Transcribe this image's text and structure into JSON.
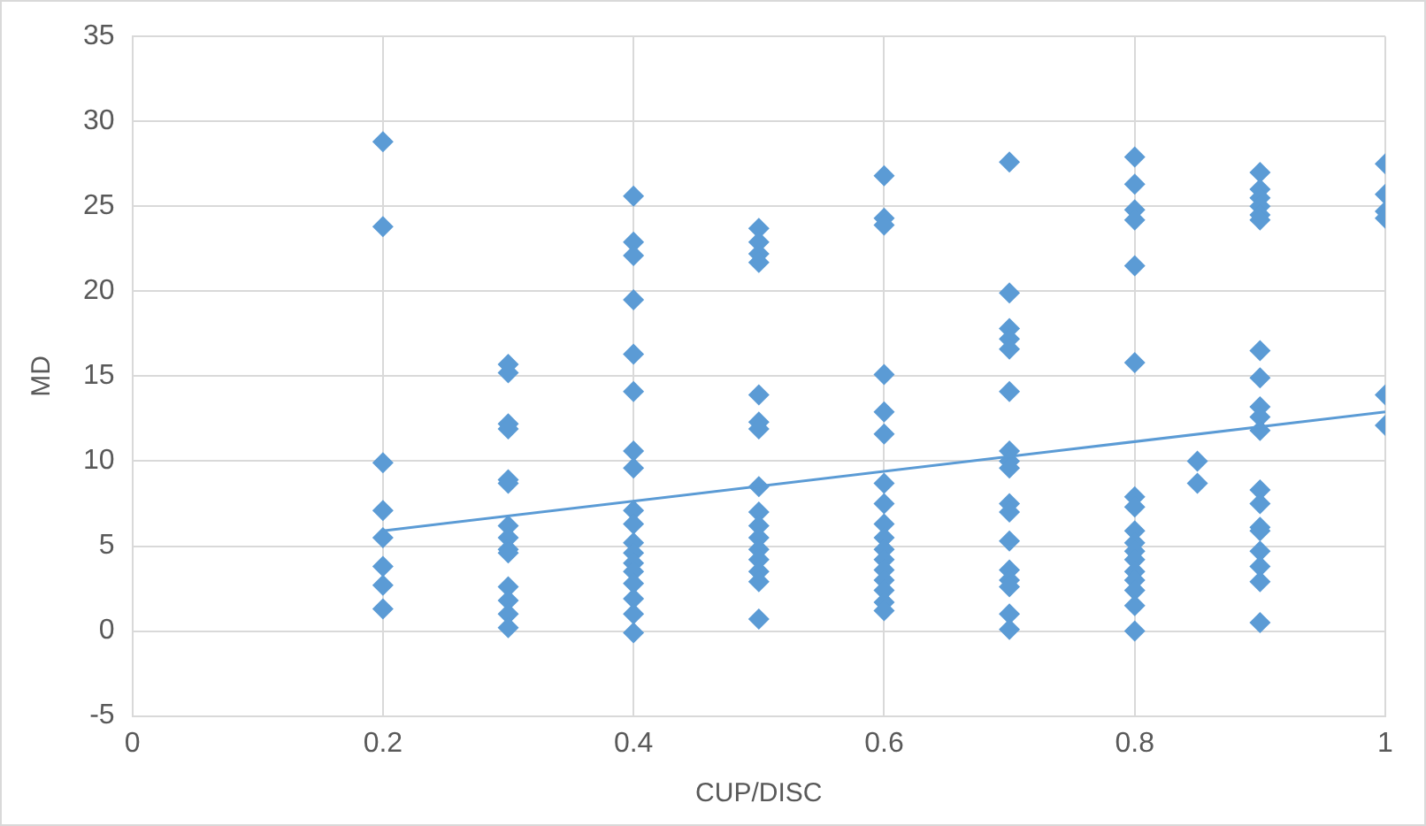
{
  "chart_data": {
    "type": "scatter",
    "xlabel": "CUP/DISC",
    "ylabel": "MD",
    "xlim": [
      0,
      1
    ],
    "xticks": [
      0,
      0.2,
      0.4,
      0.6,
      0.8,
      1
    ],
    "ylim": [
      -5,
      35
    ],
    "yticks": [
      -5,
      0,
      5,
      10,
      15,
      20,
      25,
      30,
      35
    ],
    "grid": true,
    "legend": false,
    "marker": "diamond",
    "series": [
      {
        "type": "scatter",
        "color": "#5b9bd5",
        "x": [
          0.2,
          0.2,
          0.2,
          0.2,
          0.2,
          0.2,
          0.2,
          0.2,
          0.3,
          0.3,
          0.3,
          0.3,
          0.3,
          0.3,
          0.3,
          0.3,
          0.3,
          0.3,
          0.3,
          0.3,
          0.3,
          0.3,
          0.4,
          0.4,
          0.4,
          0.4,
          0.4,
          0.4,
          0.4,
          0.4,
          0.4,
          0.4,
          0.4,
          0.4,
          0.4,
          0.4,
          0.4,
          0.4,
          0.4,
          0.4,
          0.5,
          0.5,
          0.5,
          0.5,
          0.5,
          0.5,
          0.5,
          0.5,
          0.5,
          0.5,
          0.5,
          0.5,
          0.5,
          0.5,
          0.5,
          0.5,
          0.6,
          0.6,
          0.6,
          0.6,
          0.6,
          0.6,
          0.6,
          0.6,
          0.6,
          0.6,
          0.6,
          0.6,
          0.6,
          0.6,
          0.6,
          0.6,
          0.6,
          0.7,
          0.7,
          0.7,
          0.7,
          0.7,
          0.7,
          0.7,
          0.7,
          0.7,
          0.7,
          0.7,
          0.7,
          0.7,
          0.7,
          0.7,
          0.7,
          0.7,
          0.8,
          0.8,
          0.8,
          0.8,
          0.8,
          0.8,
          0.8,
          0.8,
          0.8,
          0.8,
          0.8,
          0.8,
          0.8,
          0.8,
          0.8,
          0.8,
          0.8,
          0.85,
          0.85,
          0.9,
          0.9,
          0.9,
          0.9,
          0.9,
          0.9,
          0.9,
          0.9,
          0.9,
          0.9,
          0.9,
          0.9,
          0.9,
          0.9,
          0.9,
          0.9,
          0.9,
          0.9,
          0.9,
          1,
          1,
          1,
          1,
          1,
          1
        ],
        "values": [
          28.8,
          23.8,
          9.9,
          7.1,
          5.5,
          3.8,
          2.7,
          1.3,
          15.7,
          15.2,
          12.2,
          11.9,
          8.9,
          8.7,
          6.2,
          5.5,
          4.8,
          4.6,
          2.6,
          1.8,
          1.0,
          0.2,
          25.6,
          22.9,
          22.1,
          19.5,
          16.3,
          14.1,
          10.6,
          9.6,
          7.1,
          6.3,
          5.2,
          4.6,
          4.0,
          3.5,
          2.8,
          1.9,
          1.0,
          -0.1,
          23.7,
          22.9,
          22.2,
          21.7,
          13.9,
          12.3,
          11.9,
          8.5,
          7.0,
          6.2,
          5.5,
          4.8,
          4.2,
          3.5,
          2.9,
          0.7,
          26.8,
          24.3,
          23.9,
          15.1,
          12.9,
          11.6,
          8.7,
          7.5,
          6.3,
          5.5,
          4.8,
          4.2,
          3.6,
          3.0,
          2.4,
          1.7,
          1.2,
          27.6,
          19.9,
          17.8,
          17.2,
          16.6,
          14.1,
          10.6,
          10.0,
          9.6,
          7.5,
          7.0,
          5.3,
          3.6,
          3.0,
          2.6,
          1.0,
          0.1,
          27.9,
          26.3,
          24.8,
          24.2,
          21.5,
          15.8,
          7.9,
          7.3,
          5.9,
          5.2,
          4.7,
          4.2,
          3.5,
          3.0,
          2.4,
          1.5,
          0.0,
          10.0,
          8.7,
          27.0,
          26.0,
          25.5,
          25.0,
          24.5,
          24.2,
          16.5,
          14.9,
          13.2,
          12.6,
          11.8,
          8.3,
          7.5,
          6.1,
          5.9,
          4.7,
          3.8,
          2.9,
          0.5,
          27.5,
          25.7,
          24.7,
          24.3,
          13.9,
          12.1
        ]
      },
      {
        "type": "line",
        "color": "#5b9bd5",
        "marker": "none",
        "line_style": "solid",
        "x": [
          0.2,
          1
        ],
        "values": [
          5.9,
          12.9
        ]
      }
    ]
  }
}
